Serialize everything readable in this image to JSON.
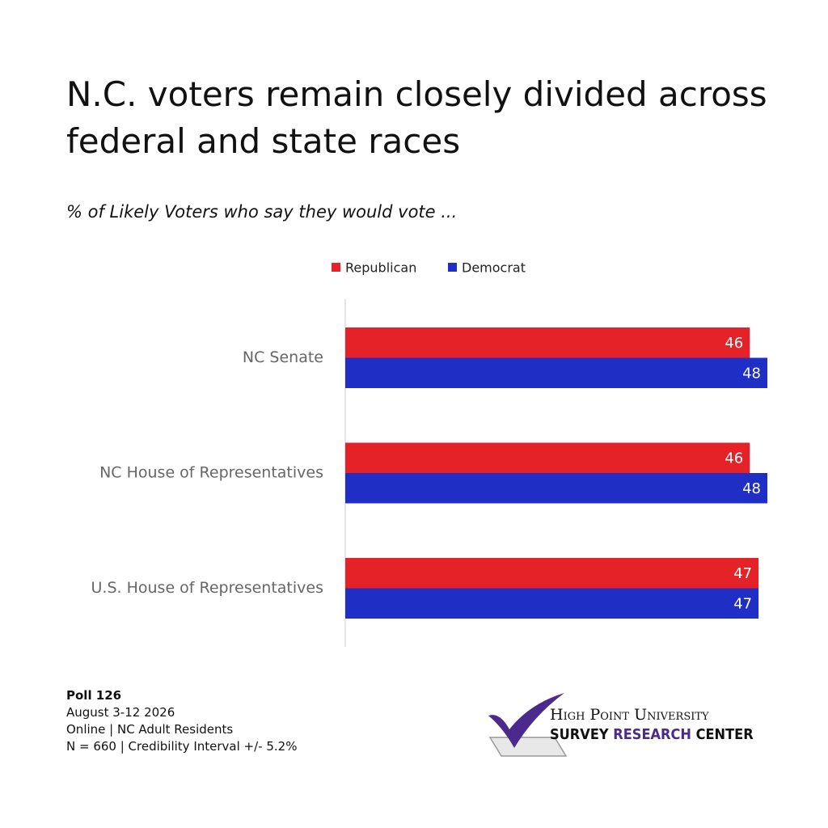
{
  "chart_data": {
    "type": "hbar",
    "title": "N.C. voters remain closely divided across federal and state races",
    "subtitle": "% of Likely Voters who say they would vote  ...",
    "categories": [
      "NC Senate",
      "NC House of Representatives",
      "U.S. House of Representatives"
    ],
    "series": [
      {
        "name": "Republican",
        "color": "#e52228",
        "values": [
          46,
          46,
          47
        ]
      },
      {
        "name": "Democrat",
        "color": "#1f2ec4",
        "values": [
          48,
          48,
          47
        ]
      }
    ],
    "xlim": [
      0,
      48
    ],
    "legend": "top"
  },
  "footer": {
    "poll": "Poll 126",
    "dates": "August 3-12 2026",
    "method": "Online | NC Adult Residents",
    "sample": "N = 660 | Credibility Interval +/- 5.2%"
  },
  "logo": {
    "line1": "High Point University",
    "line2a": "SURVEY",
    "line2b": "RESEARCH",
    "line2c": "CENTER"
  }
}
